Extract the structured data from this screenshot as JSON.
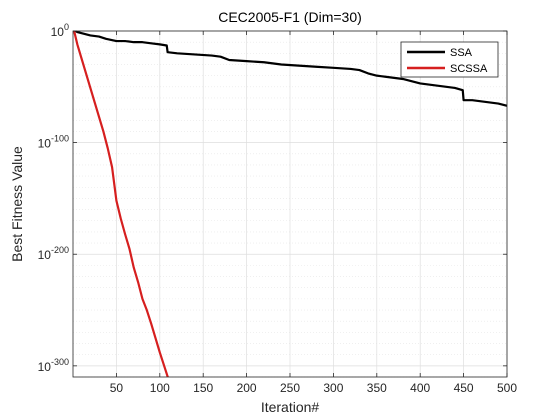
{
  "chart_data": {
    "type": "line",
    "title": "CEC2005-F1 (Dim=30)",
    "xlabel": "Iteration#",
    "ylabel": "Best Fitness Value",
    "xlim": [
      0,
      500
    ],
    "ylim_log10": [
      -310,
      0
    ],
    "y_scale": "log",
    "grid": true,
    "legend_position": "top-right",
    "x_ticks": [
      50,
      100,
      150,
      200,
      250,
      300,
      350,
      400,
      450,
      500
    ],
    "x_tick_labels": [
      "50",
      "100",
      "150",
      "200",
      "250",
      "300",
      "350",
      "400",
      "450",
      "500"
    ],
    "y_ticks_log10": [
      0,
      -100,
      -200,
      -300
    ],
    "y_tick_labels": [
      {
        "base": "10",
        "exp": "0"
      },
      {
        "base": "10",
        "exp": "-100"
      },
      {
        "base": "10",
        "exp": "-200"
      },
      {
        "base": "10",
        "exp": "-300"
      }
    ],
    "series": [
      {
        "name": "SSA",
        "color": "#000000",
        "x": [
          1,
          5,
          10,
          20,
          30,
          38,
          50,
          60,
          70,
          80,
          90,
          100,
          108,
          109,
          120,
          140,
          160,
          170,
          180,
          200,
          220,
          240,
          260,
          280,
          300,
          320,
          330,
          340,
          350,
          360,
          370,
          380,
          390,
          400,
          410,
          420,
          430,
          440,
          449,
          450,
          460,
          470,
          480,
          490,
          500
        ],
        "y_log10": [
          1,
          -1,
          -2,
          -4,
          -5,
          -7,
          -9,
          -9,
          -10,
          -10,
          -11,
          -12,
          -13,
          -19,
          -20,
          -21,
          -22,
          -23,
          -26,
          -27,
          -28,
          -30,
          -31,
          -32,
          -33,
          -34,
          -35,
          -38,
          -40,
          -41,
          -42,
          -43,
          -45,
          -47,
          -48,
          -49,
          -50,
          -51,
          -53,
          -62,
          -62,
          -63,
          -64,
          -65,
          -67
        ]
      },
      {
        "name": "SCSSA",
        "color": "#d61f1f",
        "x": [
          1,
          5,
          10,
          15,
          20,
          25,
          30,
          35,
          40,
          45,
          50,
          55,
          60,
          65,
          70,
          75,
          80,
          85,
          90,
          95,
          100,
          105,
          110
        ],
        "y_log10": [
          1,
          -12,
          -25,
          -38,
          -51,
          -64,
          -77,
          -90,
          -105,
          -122,
          -152,
          -168,
          -182,
          -195,
          -212,
          -225,
          -240,
          -250,
          -262,
          -275,
          -288,
          -300,
          -312
        ]
      }
    ]
  }
}
